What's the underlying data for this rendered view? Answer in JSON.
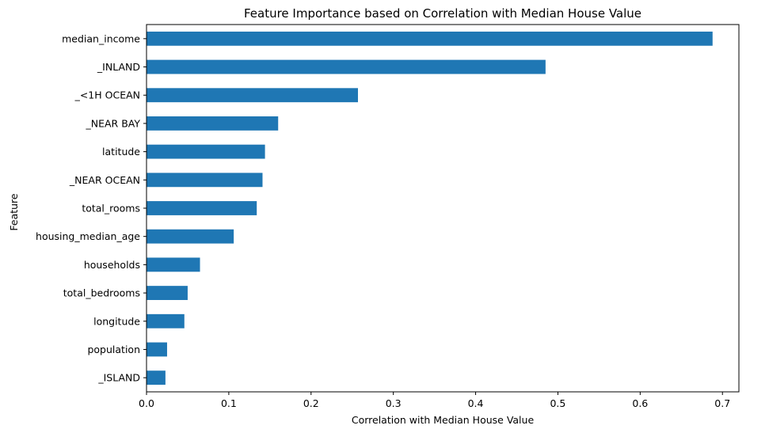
{
  "chart_data": {
    "type": "bar",
    "orientation": "horizontal",
    "title": "Feature Importance based on Correlation with Median House Value",
    "xlabel": "Correlation with Median House Value",
    "ylabel": "Feature",
    "xlim": [
      0,
      0.72
    ],
    "x_ticks": [
      "0.0",
      "0.1",
      "0.2",
      "0.3",
      "0.4",
      "0.5",
      "0.6",
      "0.7"
    ],
    "x_tick_values": [
      0,
      0.1,
      0.2,
      0.3,
      0.4,
      0.5,
      0.6,
      0.7
    ],
    "grid": false,
    "bar_color": "#1f77b4",
    "categories": [
      "median_income",
      "_INLAND",
      "_<1H OCEAN",
      "_NEAR BAY",
      "latitude",
      "_NEAR OCEAN",
      "total_rooms",
      "housing_median_age",
      "households",
      "total_bedrooms",
      "longitude",
      "population",
      "_ISLAND"
    ],
    "values": [
      0.688,
      0.485,
      0.257,
      0.16,
      0.144,
      0.141,
      0.134,
      0.106,
      0.065,
      0.05,
      0.046,
      0.025,
      0.023
    ]
  }
}
